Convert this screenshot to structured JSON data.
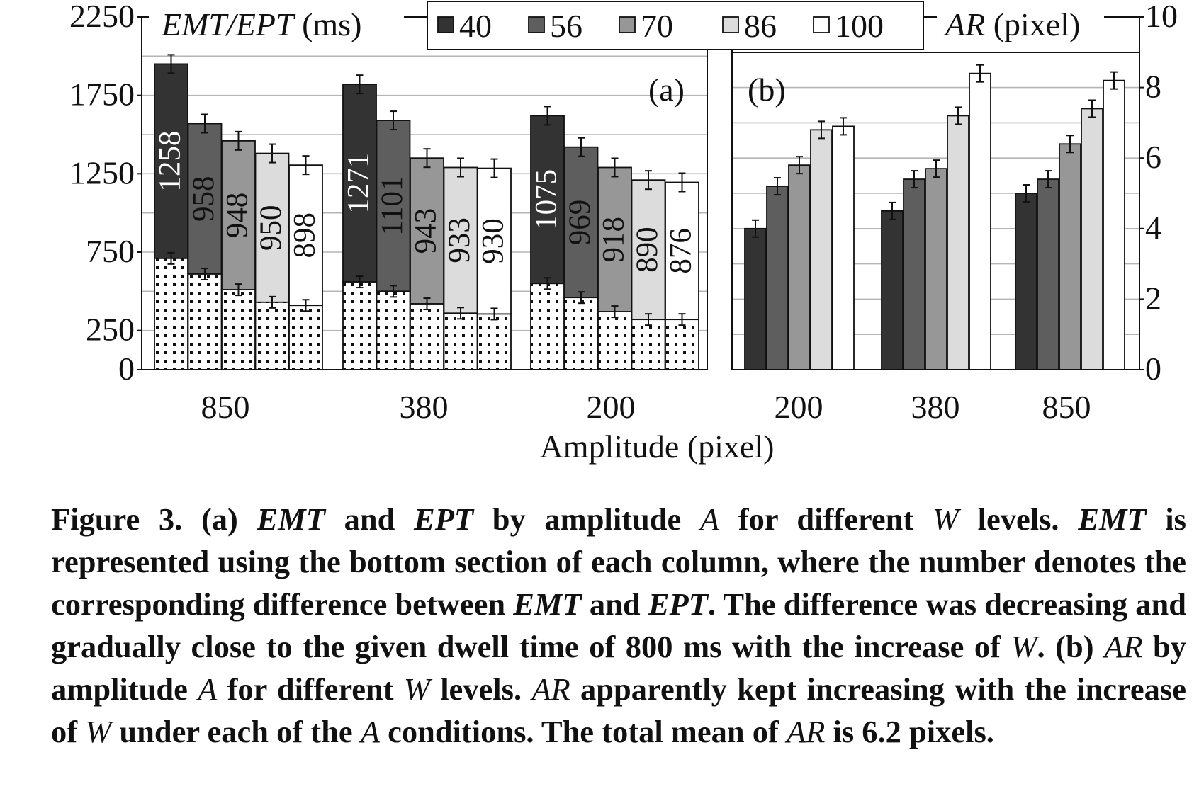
{
  "chart_data": [
    {
      "type": "bar",
      "panel_label": "(a)",
      "ylabel_parts": [
        "EMT/EPT",
        " (ms)"
      ],
      "xlabel": "Amplitude (pixel)",
      "categories": [
        "850",
        "380",
        "200"
      ],
      "ylim": [
        0,
        2250
      ],
      "yticks": [
        "0",
        "250",
        "750",
        "1250",
        "1750",
        "2250"
      ],
      "ytick_values": [
        0,
        250,
        750,
        1250,
        1750,
        2250
      ],
      "grid": true,
      "legend_position": "top",
      "series": [
        {
          "name": "40",
          "color": "#333333",
          "emt": [
            710,
            560,
            550
          ],
          "ept": [
            1950,
            1820,
            1620
          ],
          "diff": [
            1258,
            1271,
            1075
          ],
          "label_color": "#ffffff"
        },
        {
          "name": "56",
          "color": "#5e5e5e",
          "emt": [
            610,
            500,
            460
          ],
          "ept": [
            1570,
            1590,
            1420
          ],
          "diff": [
            958,
            1101,
            969
          ],
          "label_color": "#111111"
        },
        {
          "name": "70",
          "color": "#979797",
          "emt": [
            510,
            420,
            370
          ],
          "ept": [
            1460,
            1350,
            1290
          ],
          "diff": [
            948,
            943,
            918
          ],
          "label_color": "#111111"
        },
        {
          "name": "86",
          "color": "#dcdcdc",
          "emt": [
            430,
            360,
            320
          ],
          "ept": [
            1380,
            1290,
            1210
          ],
          "diff": [
            950,
            933,
            890
          ],
          "label_color": "#111111"
        },
        {
          "name": "100",
          "color": "#ffffff",
          "emt": [
            410,
            355,
            320
          ],
          "ept": [
            1305,
            1285,
            1195
          ],
          "diff": [
            898,
            930,
            876
          ],
          "label_color": "#111111"
        }
      ]
    },
    {
      "type": "bar",
      "panel_label": "(b)",
      "ylabel_parts": [
        "AR",
        " (pixel)"
      ],
      "xlabel": "Amplitude (pixel)",
      "categories": [
        "200",
        "380",
        "850"
      ],
      "ylim": [
        0,
        10
      ],
      "yticks": [
        "0",
        "2",
        "4",
        "6",
        "8",
        "10"
      ],
      "ytick_values": [
        0,
        2,
        4,
        6,
        8,
        10
      ],
      "grid": true,
      "series": [
        {
          "name": "40",
          "color": "#333333",
          "values": [
            4.0,
            4.5,
            5.0
          ]
        },
        {
          "name": "56",
          "color": "#5e5e5e",
          "values": [
            5.2,
            5.4,
            5.4
          ]
        },
        {
          "name": "70",
          "color": "#979797",
          "values": [
            5.8,
            5.7,
            6.4
          ]
        },
        {
          "name": "86",
          "color": "#dcdcdc",
          "values": [
            6.8,
            7.2,
            7.4
          ]
        },
        {
          "name": "100",
          "color": "#ffffff",
          "values": [
            6.9,
            8.4,
            8.2
          ]
        }
      ]
    }
  ],
  "caption": {
    "p01": "Figure 3.  (a) ",
    "p02": "EMT",
    "p03": " and ",
    "p04": "EPT",
    "p05": " by amplitude ",
    "p06": "A",
    "p07": " for different ",
    "p08": "W",
    "p09": " levels. ",
    "p10": "EMT",
    "p11": " is represented using the bottom section of each column, where the number denotes the corresponding difference between ",
    "p12": "EMT",
    "p13": " and ",
    "p14": "EPT",
    "p15": ". The difference was decreasing and gradually close to the given dwell time of 800 ms with the increase of ",
    "p16": "W",
    "p17": ".  (b) ",
    "p18": "AR",
    "p19": " by amplitude ",
    "p20": "A",
    "p21": " for different ",
    "p22": "W",
    "p23": " levels. ",
    "p24": "AR",
    "p25": " apparently kept increasing with the increase of ",
    "p26": "W",
    "p27": " under each of the ",
    "p28": "A",
    "p29": " conditions. The total mean of ",
    "p30": "AR",
    "p31": " is 6.2 pixels."
  }
}
